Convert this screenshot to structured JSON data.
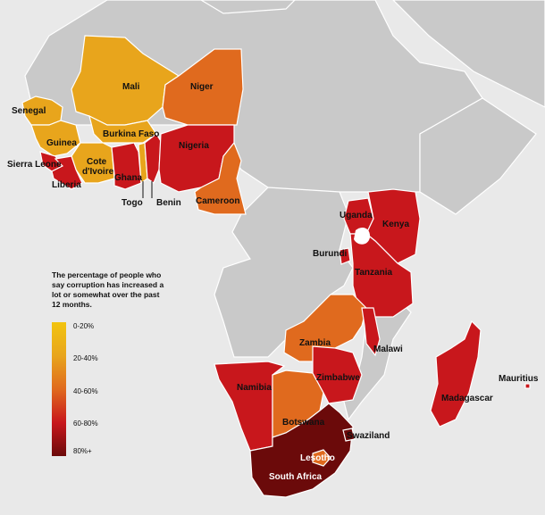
{
  "legend": {
    "title": "The percentage of people who say corruption has increased a lot or somewhat over the past 12 months.",
    "classes": [
      {
        "label": "0-20%",
        "color": "#f2c40f"
      },
      {
        "label": "20-40%",
        "color": "#e8a51c"
      },
      {
        "label": "40-60%",
        "color": "#e06a1e"
      },
      {
        "label": "60-80%",
        "color": "#c8171c"
      },
      {
        "label": "80%+",
        "color": "#6b0a0a"
      }
    ]
  },
  "countries": [
    {
      "name": "Mali",
      "class": "20-40%"
    },
    {
      "name": "Niger",
      "class": "40-60%"
    },
    {
      "name": "Senegal",
      "class": "20-40%"
    },
    {
      "name": "Guinea",
      "class": "20-40%"
    },
    {
      "name": "Burkina Faso",
      "class": "20-40%"
    },
    {
      "name": "Cote d'Ivoire",
      "class": "20-40%"
    },
    {
      "name": "Sierra Leone",
      "class": "60-80%"
    },
    {
      "name": "Liberia",
      "class": "60-80%"
    },
    {
      "name": "Ghana",
      "class": "60-80%"
    },
    {
      "name": "Togo",
      "class": "20-40%"
    },
    {
      "name": "Benin",
      "class": "60-80%"
    },
    {
      "name": "Nigeria",
      "class": "60-80%"
    },
    {
      "name": "Cameroon",
      "class": "40-60%"
    },
    {
      "name": "Uganda",
      "class": "60-80%"
    },
    {
      "name": "Kenya",
      "class": "60-80%"
    },
    {
      "name": "Burundi",
      "class": "60-80%"
    },
    {
      "name": "Tanzania",
      "class": "60-80%"
    },
    {
      "name": "Zambia",
      "class": "40-60%"
    },
    {
      "name": "Malawi",
      "class": "60-80%"
    },
    {
      "name": "Mauritius",
      "class": "60-80%"
    },
    {
      "name": "Namibia",
      "class": "60-80%"
    },
    {
      "name": "Zimbabwe",
      "class": "60-80%"
    },
    {
      "name": "Botswana",
      "class": "40-60%"
    },
    {
      "name": "Madagascar",
      "class": "60-80%"
    },
    {
      "name": "Swaziland",
      "class": "80%+"
    },
    {
      "name": "Lesotho",
      "class": "40-60%"
    },
    {
      "name": "South Africa",
      "class": "80%+"
    }
  ]
}
